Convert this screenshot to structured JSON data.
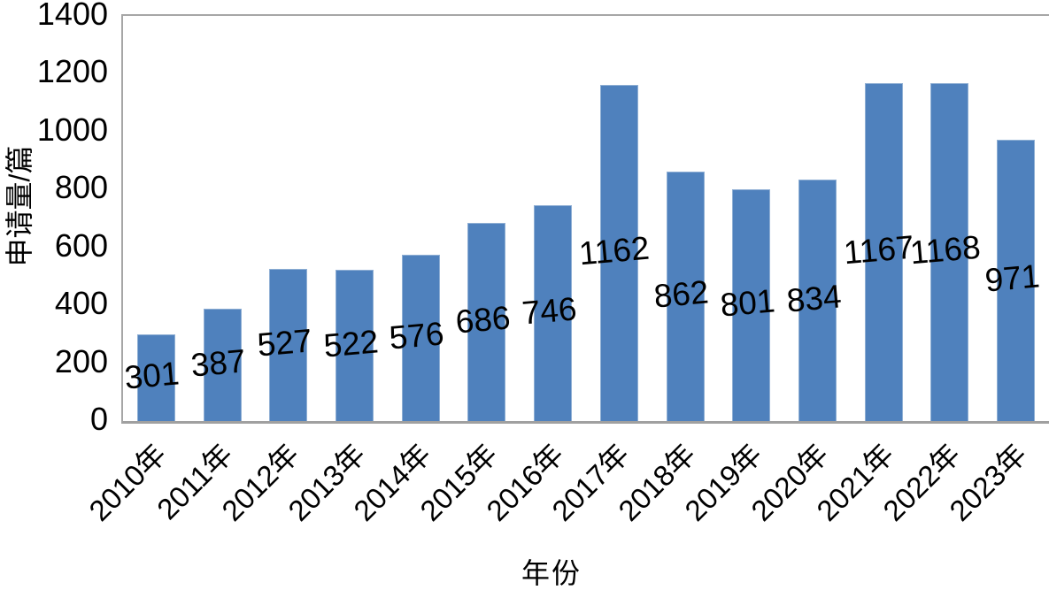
{
  "chart_data": {
    "type": "bar",
    "title": "",
    "categories": [
      "2010年",
      "2011年",
      "2012年",
      "2013年",
      "2014年",
      "2015年",
      "2016年",
      "2017年",
      "2018年",
      "2019年",
      "2020年",
      "2021年",
      "2022年",
      "2023年"
    ],
    "values": [
      301,
      387,
      527,
      522,
      576,
      686,
      746,
      1162,
      862,
      801,
      834,
      1167,
      1168,
      971
    ],
    "xlabel": "年份",
    "ylabel": "申请量/篇",
    "ylim": [
      0,
      1400
    ],
    "yticks": [
      0,
      200,
      400,
      600,
      800,
      1000,
      1200,
      1400
    ],
    "grid": false,
    "legend": "none",
    "data_label_position": "center",
    "bar_color": "#4F81BD",
    "bar_border_color": "#8fafd4",
    "axis_color": "#a6a6a6",
    "text_color": "#000000"
  }
}
